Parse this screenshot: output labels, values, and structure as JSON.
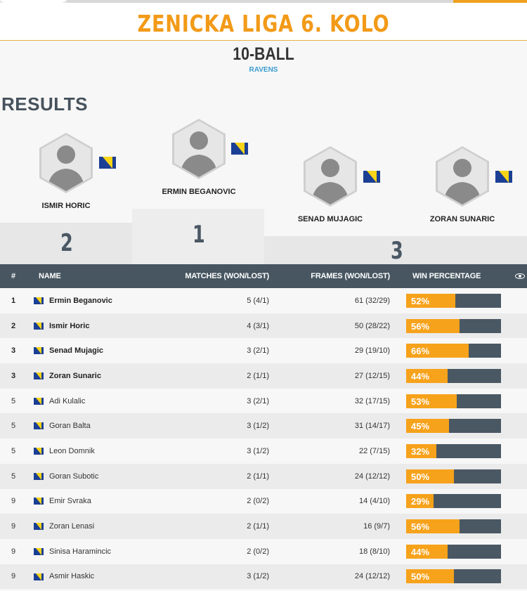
{
  "event": {
    "title": "ZENICKA LIGA 6. KOLO"
  },
  "discipline": {
    "name": "10-BALL",
    "venue": "RAVENS"
  },
  "results_heading": "RESULTS",
  "podium": {
    "first": {
      "name": "ERMIN BEGANOVIC",
      "rank": "1"
    },
    "second": {
      "name": "ISMIR HORIC",
      "rank": "2"
    },
    "third_a": {
      "name": "SENAD MUJAGIC"
    },
    "third_b": {
      "name": "ZORAN SUNARIC"
    },
    "third_rank": "3"
  },
  "table": {
    "headers": {
      "rank": "#",
      "name": "NAME",
      "matches": "MATCHES (WON/LOST)",
      "frames": "FRAMES (WON/LOST)",
      "win": "WIN PERCENTAGE"
    },
    "rows": [
      {
        "rank": "1",
        "name": "Ermin Beganovic",
        "matches": "5 (4/1)",
        "frames": "61 (32/29)",
        "win": "52%",
        "win_value": 52
      },
      {
        "rank": "2",
        "name": "Ismir Horic",
        "matches": "4 (3/1)",
        "frames": "50 (28/22)",
        "win": "56%",
        "win_value": 56
      },
      {
        "rank": "3",
        "name": "Senad Mujagic",
        "matches": "3 (2/1)",
        "frames": "29 (19/10)",
        "win": "66%",
        "win_value": 66
      },
      {
        "rank": "3",
        "name": "Zoran Sunaric",
        "matches": "2 (1/1)",
        "frames": "27 (12/15)",
        "win": "44%",
        "win_value": 44
      },
      {
        "rank": "5",
        "name": "Adi Kulalic",
        "matches": "3 (2/1)",
        "frames": "32 (17/15)",
        "win": "53%",
        "win_value": 53
      },
      {
        "rank": "5",
        "name": "Goran Balta",
        "matches": "3 (1/2)",
        "frames": "31 (14/17)",
        "win": "45%",
        "win_value": 45
      },
      {
        "rank": "5",
        "name": "Leon Domnik",
        "matches": "3 (1/2)",
        "frames": "22 (7/15)",
        "win": "32%",
        "win_value": 32
      },
      {
        "rank": "5",
        "name": "Goran Subotic",
        "matches": "2 (1/1)",
        "frames": "24 (12/12)",
        "win": "50%",
        "win_value": 50
      },
      {
        "rank": "9",
        "name": "Emir Svraka",
        "matches": "2 (0/2)",
        "frames": "14 (4/10)",
        "win": "29%",
        "win_value": 29
      },
      {
        "rank": "9",
        "name": "Zoran Lenasi",
        "matches": "2 (1/1)",
        "frames": "16 (9/7)",
        "win": "56%",
        "win_value": 56
      },
      {
        "rank": "9",
        "name": "Sinisa Haramincic",
        "matches": "2 (0/2)",
        "frames": "18 (8/10)",
        "win": "44%",
        "win_value": 44
      },
      {
        "rank": "9",
        "name": "Asmir Haskic",
        "matches": "3 (1/2)",
        "frames": "24 (12/12)",
        "win": "50%",
        "win_value": 50
      }
    ]
  },
  "colors": {
    "accent": "#f29a18",
    "bar_fill": "#f7a21b",
    "bar_bg": "#4a5864",
    "header_bg": "#475661",
    "link": "#3a9ccf"
  }
}
